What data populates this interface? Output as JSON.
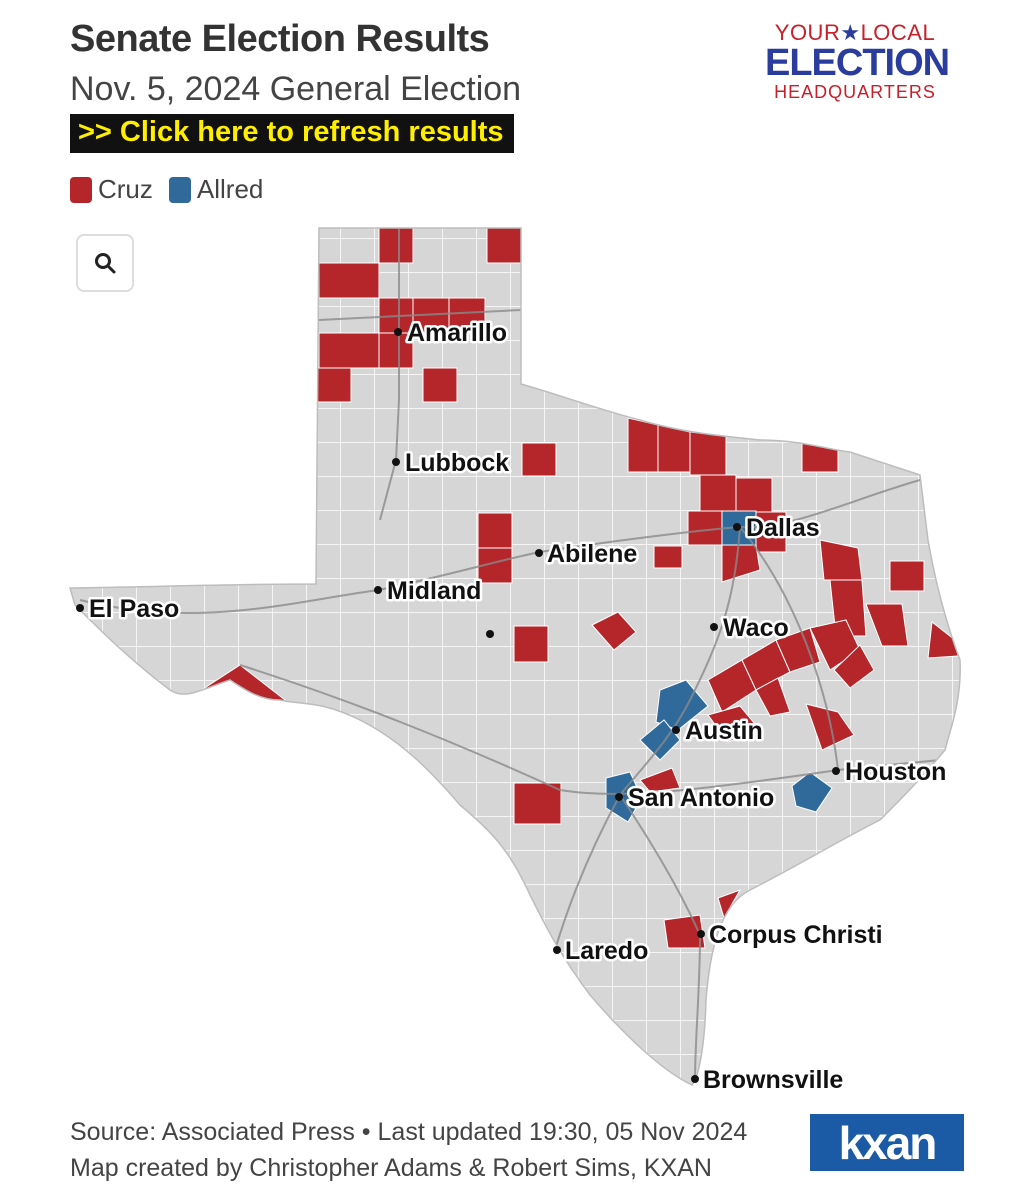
{
  "header": {
    "title": "Senate Election Results",
    "subtitle": "Nov. 5, 2024 General Election",
    "refresh_label": ">> Click here to refresh results"
  },
  "logo": {
    "line1a": "YOUR",
    "line1b": "LOCAL",
    "line2": "ELECTION",
    "line3": "HEADQUARTERS"
  },
  "legend": [
    {
      "label": "Cruz",
      "color": "#b5262b"
    },
    {
      "label": "Allred",
      "color": "#2f6a9a"
    }
  ],
  "search": {
    "icon": "search-icon"
  },
  "map": {
    "cities": [
      "Amarillo",
      "Lubbock",
      "Dallas",
      "Abilene",
      "Midland",
      "El Paso",
      "Waco",
      "Austin",
      "Houston",
      "San Antonio",
      "Corpus Christi",
      "Laredo",
      "Brownsville"
    ]
  },
  "footer": {
    "source": "Source: Associated Press • Last updated 19:30, 05 Nov 2024",
    "credit": "Map created by Christopher Adams & Robert Sims, KXAN"
  },
  "brand": {
    "name": "kxan"
  }
}
